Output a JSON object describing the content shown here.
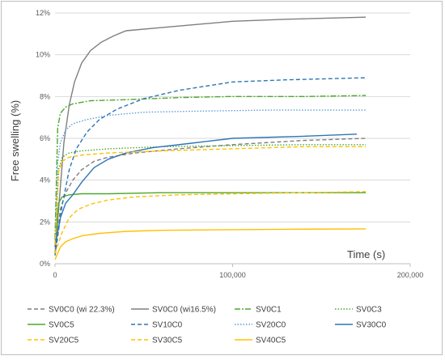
{
  "chart_data": {
    "type": "line",
    "title": "",
    "xlabel": "Time (s)",
    "ylabel": "Free swelling (%)",
    "xlim": [
      0,
      200000
    ],
    "ylim": [
      0,
      12
    ],
    "x_ticks": [
      "0",
      "100,000",
      "200,000"
    ],
    "y_ticks": [
      "0%",
      "2%",
      "4%",
      "6%",
      "8%",
      "10%",
      "12%"
    ],
    "grid": "horizontal",
    "legend_position": "bottom",
    "series": [
      {
        "name": "SV0C0 (wi 22.3%)",
        "color": "#7f7f7f",
        "dash": "dashed",
        "points": [
          [
            0,
            0.4
          ],
          [
            3000,
            2.6
          ],
          [
            6000,
            3.4
          ],
          [
            10000,
            4.0
          ],
          [
            15000,
            4.5
          ],
          [
            22000,
            4.9
          ],
          [
            30000,
            5.1
          ],
          [
            45000,
            5.3
          ],
          [
            70000,
            5.5
          ],
          [
            100000,
            5.7
          ],
          [
            140000,
            5.9
          ],
          [
            175000,
            6.0
          ]
        ]
      },
      {
        "name": "SV0C0 (wi16.5%)",
        "color": "#7f7f7f",
        "dash": "solid",
        "points": [
          [
            0,
            0.5
          ],
          [
            2000,
            2.6
          ],
          [
            5000,
            5.8
          ],
          [
            8000,
            7.6
          ],
          [
            11000,
            8.7
          ],
          [
            15000,
            9.6
          ],
          [
            20000,
            10.2
          ],
          [
            26000,
            10.6
          ],
          [
            33000,
            10.9
          ],
          [
            40000,
            11.15
          ],
          [
            60000,
            11.3
          ],
          [
            80000,
            11.45
          ],
          [
            100000,
            11.6
          ],
          [
            130000,
            11.7
          ],
          [
            175000,
            11.8
          ]
        ]
      },
      {
        "name": "SV0C1",
        "color": "#4ea72e",
        "dash": "dashdot",
        "points": [
          [
            0,
            1.2
          ],
          [
            1500,
            6.5
          ],
          [
            3000,
            7.2
          ],
          [
            6000,
            7.5
          ],
          [
            10000,
            7.65
          ],
          [
            20000,
            7.8
          ],
          [
            40000,
            7.85
          ],
          [
            70000,
            7.95
          ],
          [
            100000,
            8.0
          ],
          [
            140000,
            8.0
          ],
          [
            175000,
            8.05
          ]
        ]
      },
      {
        "name": "SV0C3",
        "color": "#4ea72e",
        "dash": "dotted",
        "points": [
          [
            0,
            1.0
          ],
          [
            2000,
            4.5
          ],
          [
            4000,
            5.1
          ],
          [
            8000,
            5.3
          ],
          [
            15000,
            5.4
          ],
          [
            30000,
            5.5
          ],
          [
            60000,
            5.6
          ],
          [
            100000,
            5.65
          ],
          [
            140000,
            5.7
          ],
          [
            175000,
            5.7
          ]
        ]
      },
      {
        "name": "SV0C5",
        "color": "#4ea72e",
        "dash": "solid",
        "points": [
          [
            0,
            0.8
          ],
          [
            2000,
            2.9
          ],
          [
            4000,
            3.2
          ],
          [
            8000,
            3.3
          ],
          [
            15000,
            3.35
          ],
          [
            30000,
            3.35
          ],
          [
            60000,
            3.4
          ],
          [
            100000,
            3.4
          ],
          [
            140000,
            3.4
          ],
          [
            175000,
            3.4
          ]
        ]
      },
      {
        "name": "SV10C0",
        "color": "#2e75b6",
        "dash": "dashed",
        "points": [
          [
            0,
            0.4
          ],
          [
            4000,
            2.8
          ],
          [
            8000,
            4.5
          ],
          [
            12000,
            5.5
          ],
          [
            18000,
            6.3
          ],
          [
            25000,
            6.9
          ],
          [
            35000,
            7.4
          ],
          [
            50000,
            7.9
          ],
          [
            70000,
            8.3
          ],
          [
            100000,
            8.7
          ],
          [
            130000,
            8.8
          ],
          [
            175000,
            8.9
          ]
        ]
      },
      {
        "name": "SV20C0",
        "color": "#5b9bd5",
        "dash": "dotted",
        "points": [
          [
            0,
            1.0
          ],
          [
            1500,
            4.8
          ],
          [
            3000,
            5.8
          ],
          [
            6000,
            6.4
          ],
          [
            10000,
            6.7
          ],
          [
            18000,
            6.9
          ],
          [
            30000,
            7.1
          ],
          [
            50000,
            7.25
          ],
          [
            80000,
            7.3
          ],
          [
            120000,
            7.35
          ],
          [
            175000,
            7.35
          ]
        ]
      },
      {
        "name": "SV30C0",
        "color": "#2e75b6",
        "dash": "solid",
        "points": [
          [
            0,
            0.8
          ],
          [
            3000,
            2.2
          ],
          [
            6000,
            2.9
          ],
          [
            10000,
            3.3
          ],
          [
            15000,
            3.9
          ],
          [
            22000,
            4.6
          ],
          [
            30000,
            5.0
          ],
          [
            40000,
            5.3
          ],
          [
            55000,
            5.55
          ],
          [
            75000,
            5.75
          ],
          [
            100000,
            6.0
          ],
          [
            140000,
            6.1
          ],
          [
            170000,
            6.2
          ]
        ]
      },
      {
        "name": "SV20C5",
        "color": "#ffc000",
        "dash": "dashed",
        "points": [
          [
            0,
            0.9
          ],
          [
            2000,
            4.4
          ],
          [
            4000,
            4.9
          ],
          [
            8000,
            5.1
          ],
          [
            15000,
            5.2
          ],
          [
            30000,
            5.3
          ],
          [
            60000,
            5.4
          ],
          [
            100000,
            5.5
          ],
          [
            140000,
            5.6
          ],
          [
            175000,
            5.6
          ]
        ]
      },
      {
        "name": "SV30C5",
        "color": "#ffc000",
        "dash": "dashed",
        "points": [
          [
            0,
            0.5
          ],
          [
            4000,
            1.5
          ],
          [
            8000,
            2.2
          ],
          [
            13000,
            2.6
          ],
          [
            20000,
            2.85
          ],
          [
            30000,
            3.05
          ],
          [
            45000,
            3.2
          ],
          [
            70000,
            3.3
          ],
          [
            100000,
            3.35
          ],
          [
            140000,
            3.4
          ],
          [
            175000,
            3.45
          ]
        ]
      },
      {
        "name": "SV40C5",
        "color": "#ffc000",
        "dash": "solid",
        "points": [
          [
            0,
            0.2
          ],
          [
            3000,
            0.8
          ],
          [
            6000,
            1.05
          ],
          [
            10000,
            1.2
          ],
          [
            16000,
            1.35
          ],
          [
            25000,
            1.45
          ],
          [
            40000,
            1.55
          ],
          [
            60000,
            1.6
          ],
          [
            90000,
            1.62
          ],
          [
            130000,
            1.65
          ],
          [
            175000,
            1.67
          ]
        ]
      }
    ]
  }
}
